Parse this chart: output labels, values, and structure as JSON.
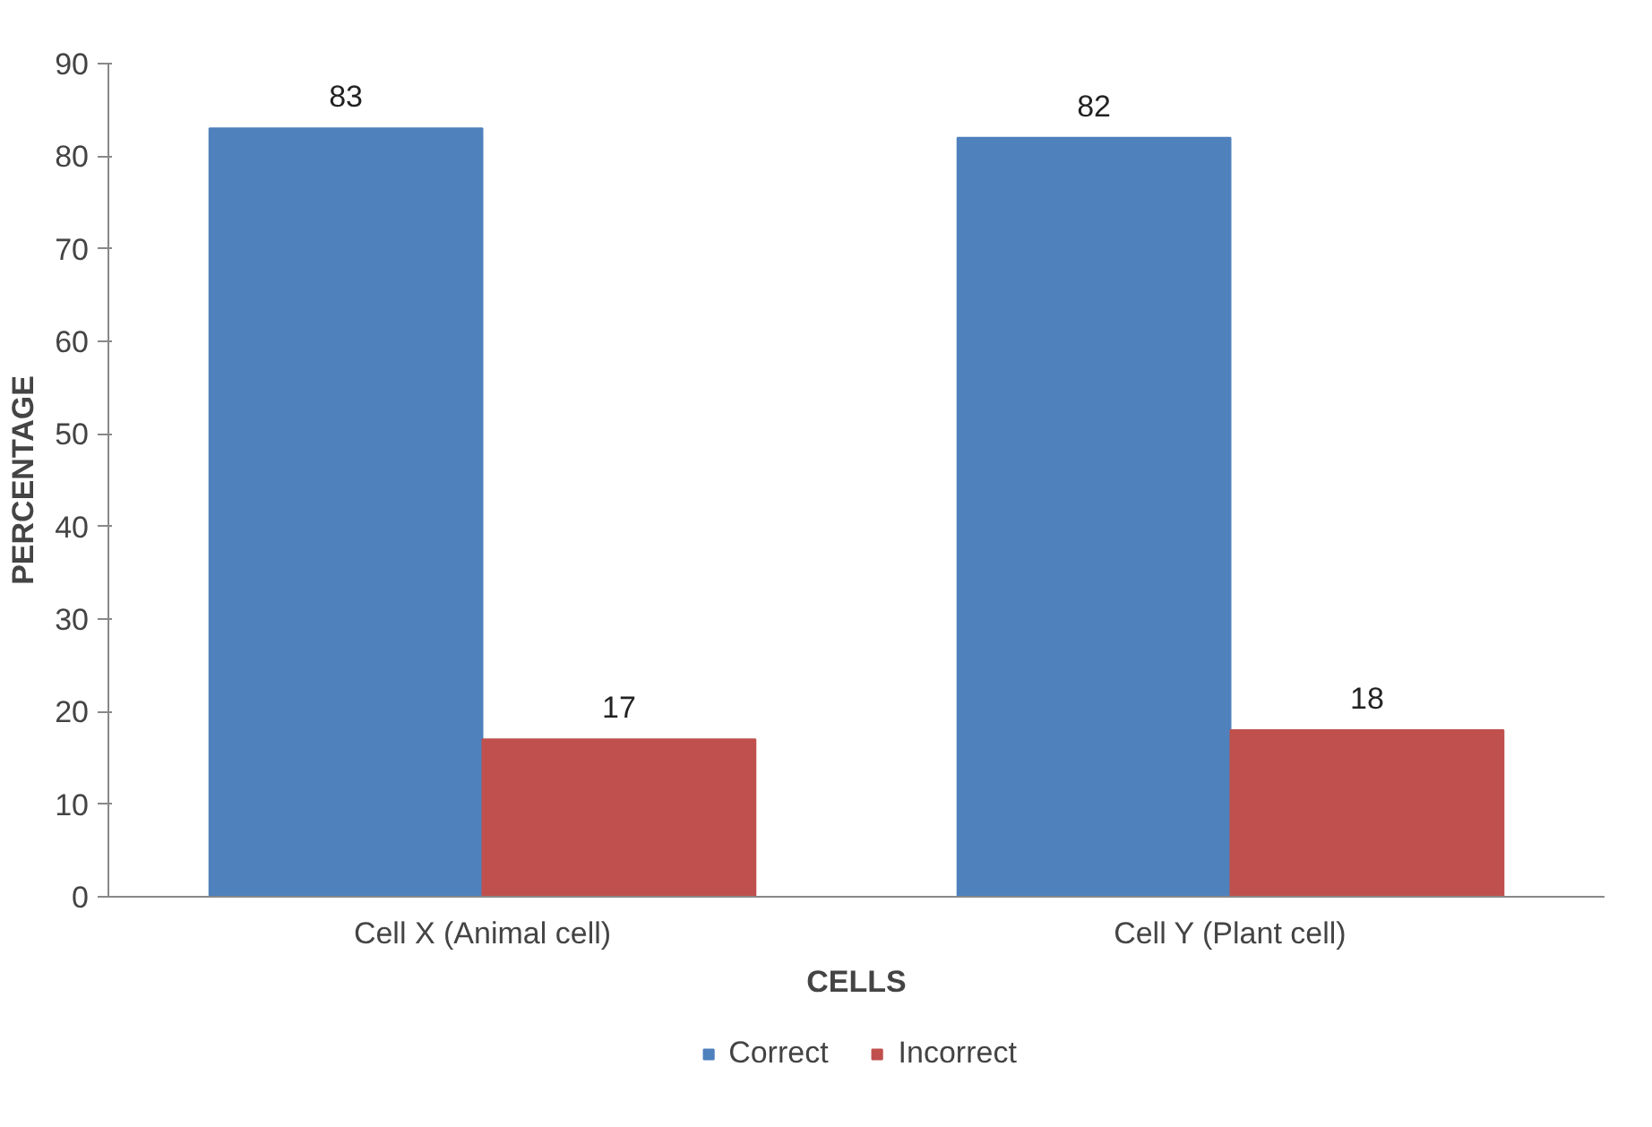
{
  "chart_data": {
    "type": "bar",
    "xlabel": "CELLS",
    "ylabel": "PERCENTAGE",
    "categories": [
      "Cell X (Animal cell)",
      "Cell Y (Plant cell)"
    ],
    "series": [
      {
        "name": "Correct",
        "color": "#4f81bd",
        "values": [
          83,
          82
        ]
      },
      {
        "name": "Incorrect",
        "color": "#c0504d",
        "values": [
          17,
          18
        ]
      }
    ],
    "ylim": [
      0,
      90
    ],
    "yticks": [
      0,
      10,
      20,
      30,
      40,
      50,
      60,
      70,
      80,
      90
    ],
    "grid": false,
    "legend": "bottom",
    "data_labels": true
  }
}
